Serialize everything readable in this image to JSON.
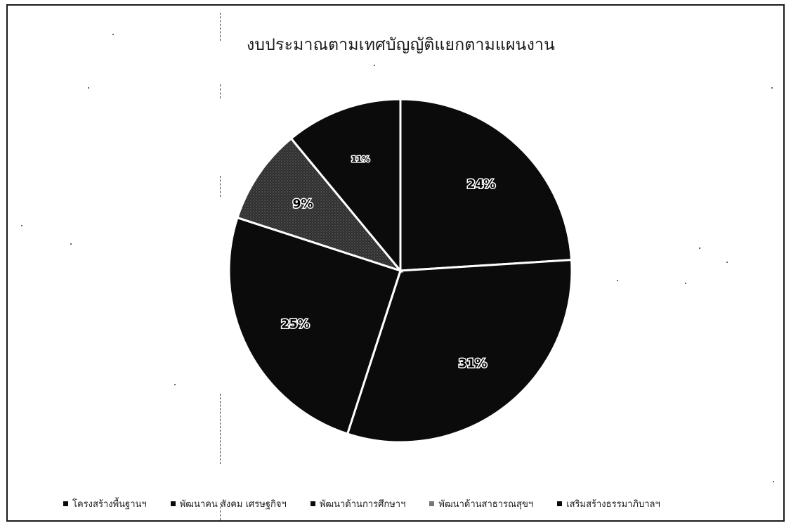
{
  "chart_data": {
    "type": "pie",
    "title": "งบประมาณตามเทศบัญญัติแยกตามแผนงาน",
    "categories": [
      "โครงสร้างพื้นฐานฯ",
      "พัฒนาคน สังคม เศรษฐกิจฯ",
      "พัฒนาด้านการศึกษาฯ",
      "พัฒนาด้านสาธารณสุขฯ",
      "เสริมสร้างธรรมาภิบาลฯ"
    ],
    "values": [
      24,
      31,
      25,
      9,
      11
    ],
    "data_labels": [
      "24%",
      "31%",
      "25%",
      "9%",
      "11%"
    ],
    "legend_position": "bottom",
    "colors": [
      "#0b0b0b",
      "#0b0b0b",
      "#0b0b0b",
      "#2a2a2a",
      "#0b0b0b"
    ]
  }
}
